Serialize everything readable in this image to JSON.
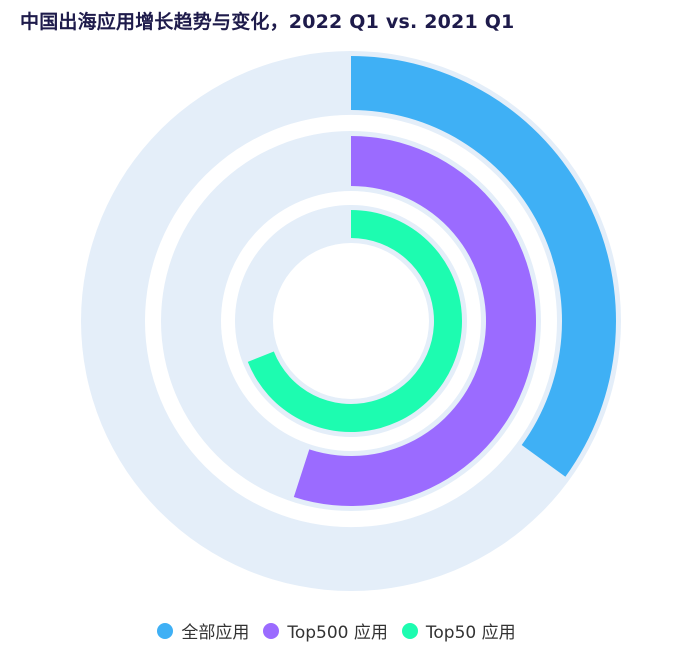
{
  "title": "中国出海应用增长趋势与变化，2022 Q1 vs. 2021 Q1",
  "chart_data": {
    "type": "radial-bar",
    "title": "中国出海应用增长趋势与变化，2022 Q1 vs. 2021 Q1",
    "value_unit": "fraction of full circle",
    "track_color": "#e4eef9",
    "series": [
      {
        "name": "全部应用",
        "value": 0.35,
        "color": "#3fb0f5"
      },
      {
        "name": "Top500 应用",
        "value": 0.55,
        "color": "#9b6bff"
      },
      {
        "name": "Top50 应用",
        "value": 0.69,
        "color": "#1dfcb0"
      }
    ],
    "legend_position": "bottom-center"
  }
}
